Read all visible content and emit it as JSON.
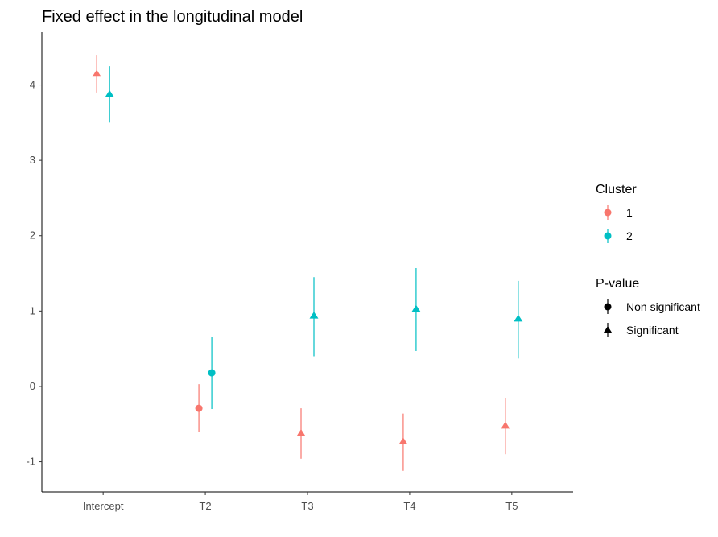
{
  "chart_data": {
    "type": "scatter",
    "title": "Fixed effect in the longitudinal model",
    "xlabel": "",
    "ylabel": "",
    "categories": [
      "Intercept",
      "T2",
      "T3",
      "T4",
      "T5"
    ],
    "ylim": [
      -1.4,
      4.7
    ],
    "yticks": [
      -1,
      0,
      1,
      2,
      3,
      4
    ],
    "grid": false,
    "legend_position": "right",
    "legends": [
      {
        "title": "Cluster",
        "items": [
          {
            "label": "1",
            "color": "#F8766D",
            "shape": "circle"
          },
          {
            "label": "2",
            "color": "#00BFC4",
            "shape": "circle"
          }
        ]
      },
      {
        "title": "P-value",
        "items": [
          {
            "label": "Non significant",
            "color": "#000000",
            "shape": "circle"
          },
          {
            "label": "Significant",
            "color": "#000000",
            "shape": "triangle"
          }
        ]
      }
    ],
    "series": [
      {
        "name": "1",
        "color": "#F8766D",
        "points": [
          {
            "x": "Intercept",
            "y": 4.15,
            "lower": 3.9,
            "upper": 4.4,
            "significance": "Significant"
          },
          {
            "x": "T2",
            "y": -0.29,
            "lower": -0.6,
            "upper": 0.03,
            "significance": "Non significant"
          },
          {
            "x": "T3",
            "y": -0.62,
            "lower": -0.96,
            "upper": -0.29,
            "significance": "Significant"
          },
          {
            "x": "T4",
            "y": -0.73,
            "lower": -1.12,
            "upper": -0.36,
            "significance": "Significant"
          },
          {
            "x": "T5",
            "y": -0.52,
            "lower": -0.9,
            "upper": -0.15,
            "significance": "Significant"
          }
        ]
      },
      {
        "name": "2",
        "color": "#00BFC4",
        "points": [
          {
            "x": "Intercept",
            "y": 3.88,
            "lower": 3.5,
            "upper": 4.25,
            "significance": "Significant"
          },
          {
            "x": "T2",
            "y": 0.18,
            "lower": -0.3,
            "upper": 0.66,
            "significance": "Non significant"
          },
          {
            "x": "T3",
            "y": 0.94,
            "lower": 0.4,
            "upper": 1.45,
            "significance": "Significant"
          },
          {
            "x": "T4",
            "y": 1.03,
            "lower": 0.47,
            "upper": 1.57,
            "significance": "Significant"
          },
          {
            "x": "T5",
            "y": 0.9,
            "lower": 0.37,
            "upper": 1.4,
            "significance": "Significant"
          }
        ]
      }
    ]
  }
}
